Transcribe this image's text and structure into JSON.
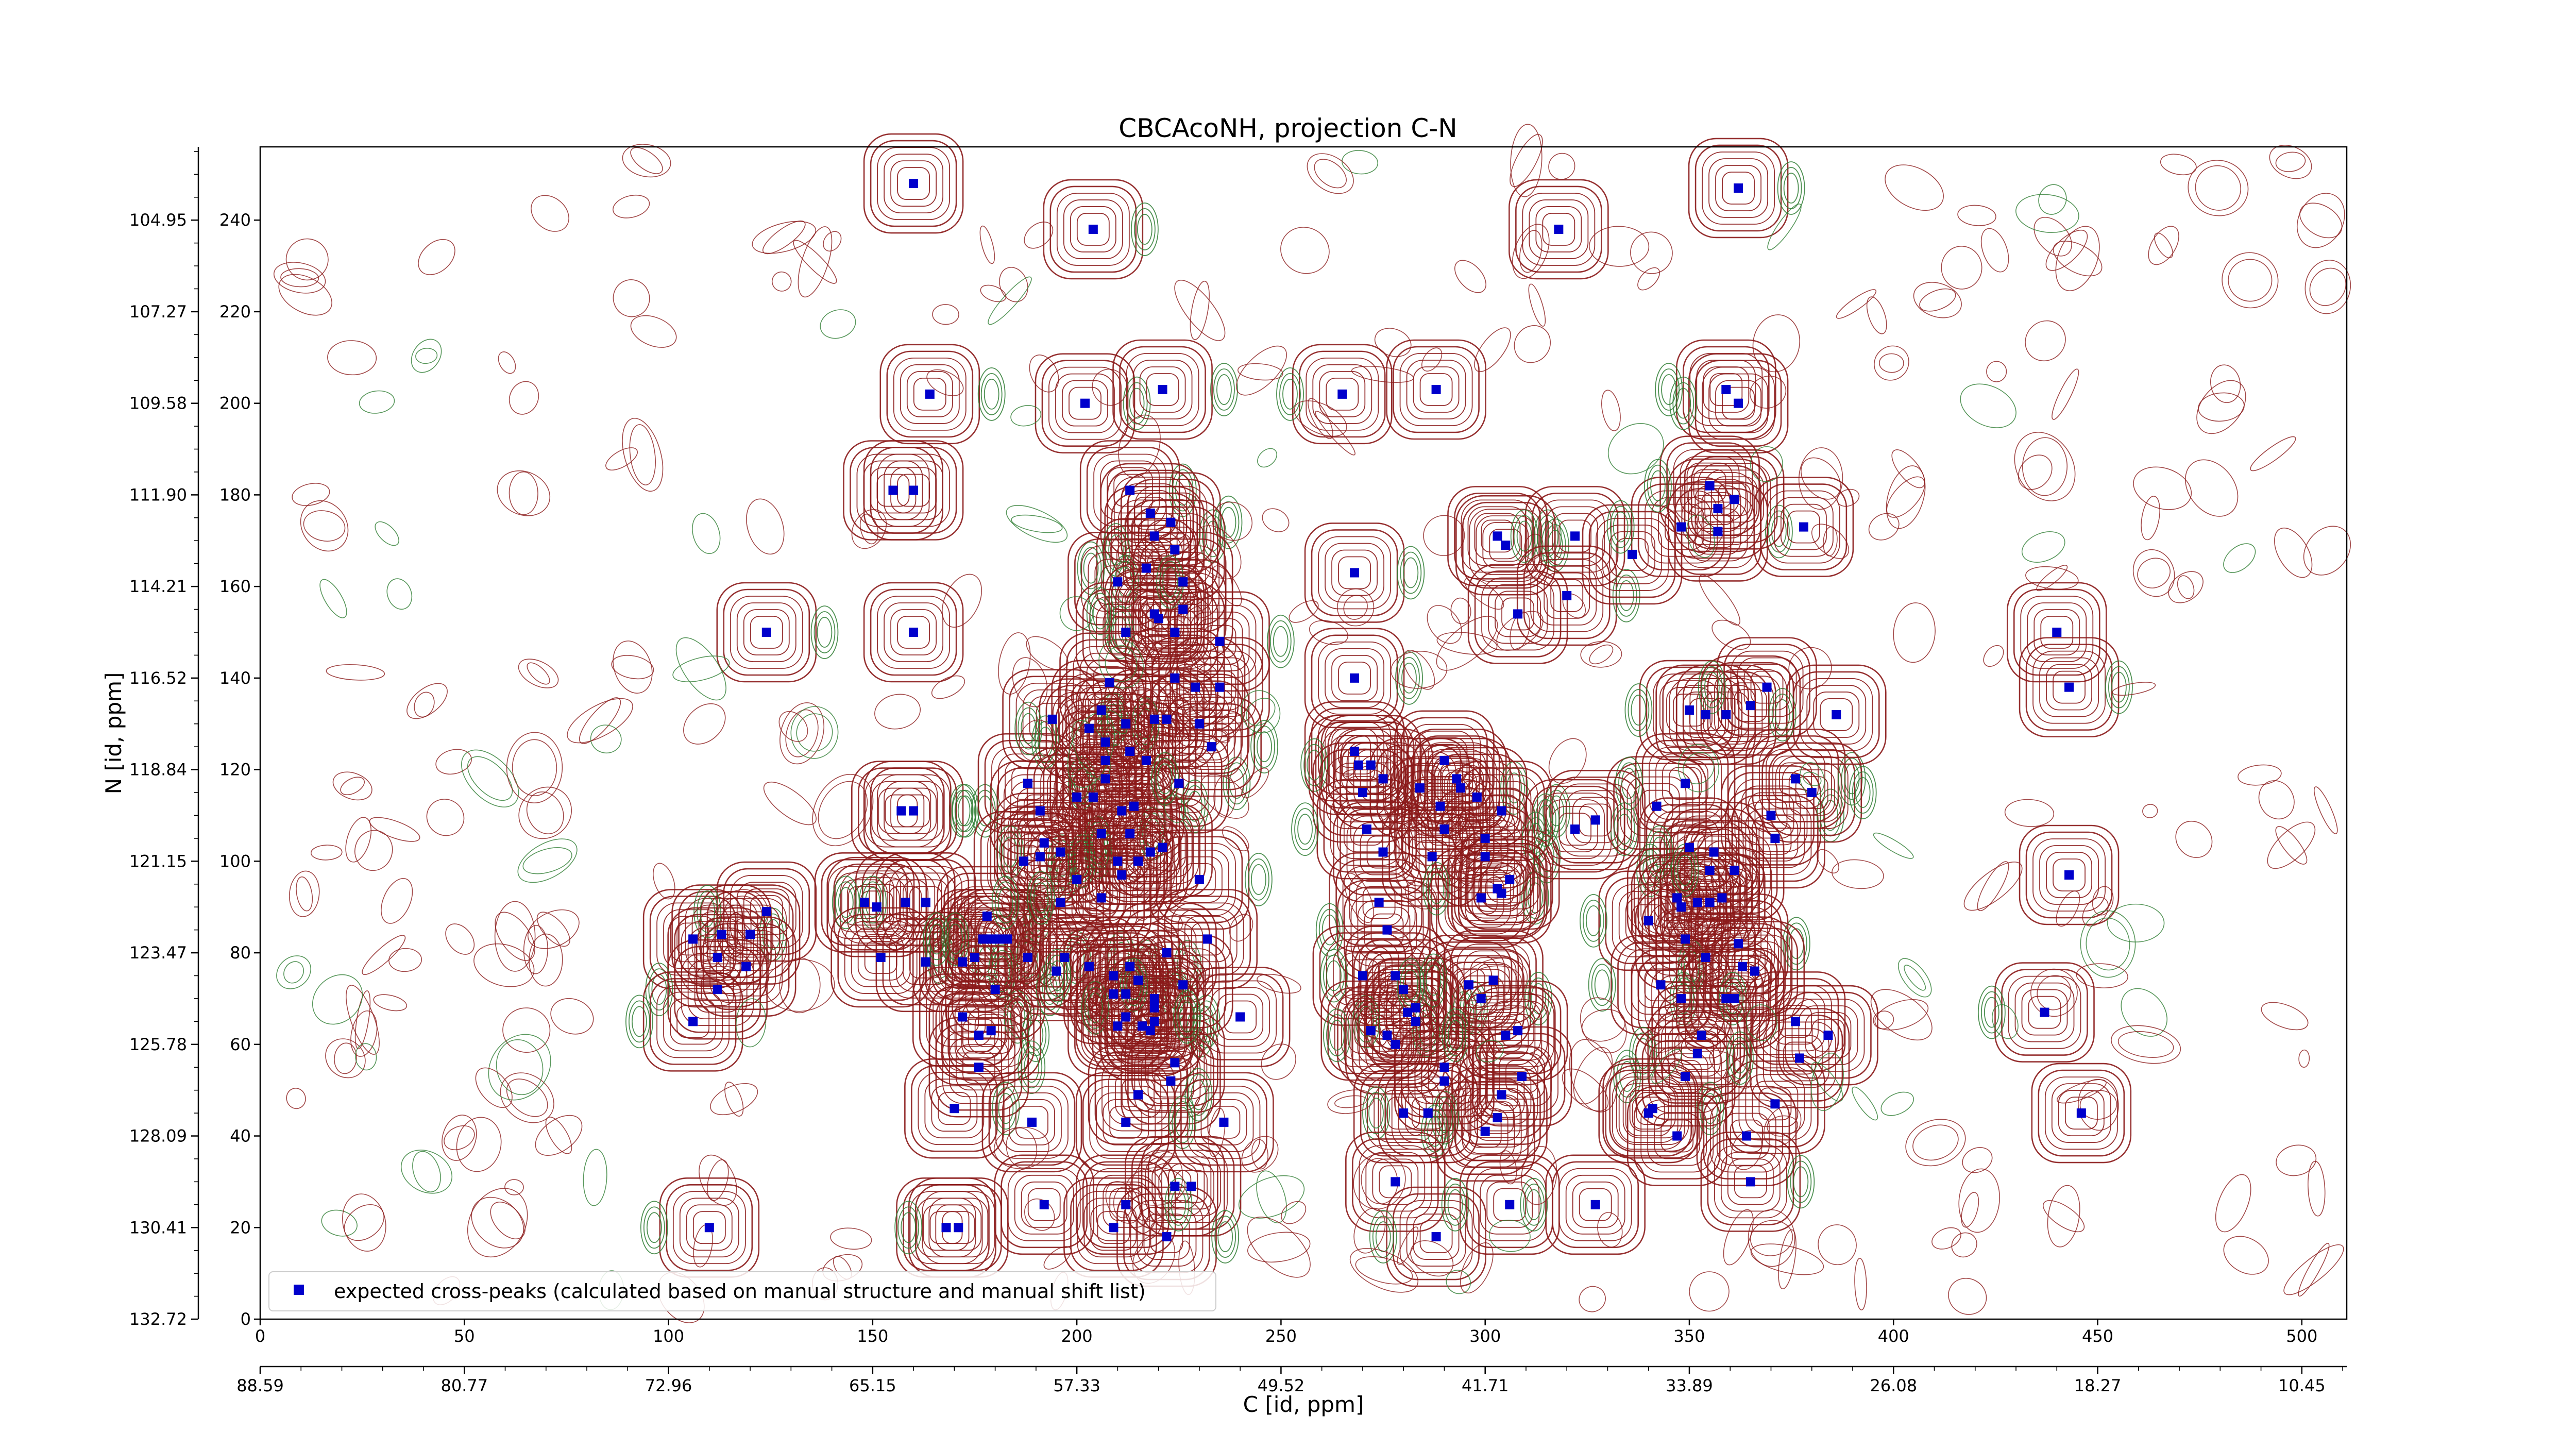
{
  "chart_data": {
    "type": "scatter",
    "title": "CBCAcoNH, projection C-N",
    "xlabel": "C [id, ppm]",
    "ylabel": "N [id, ppm]",
    "xlim": [
      0,
      511
    ],
    "ylim": [
      0,
      256
    ],
    "x_ticks": [
      0,
      50,
      100,
      150,
      200,
      250,
      300,
      350,
      400,
      450,
      500
    ],
    "y_ticks": [
      0,
      20,
      40,
      60,
      80,
      100,
      120,
      140,
      160,
      180,
      200,
      220,
      240
    ],
    "y_ppm_tick_labels": [
      "132.72",
      "130.41",
      "128.09",
      "125.78",
      "123.47",
      "121.15",
      "118.84",
      "116.52",
      "114.21",
      "111.90",
      "109.58",
      "107.27",
      "104.95"
    ],
    "x_ppm_tick_labels": [
      "88.59",
      "80.77",
      "72.96",
      "65.15",
      "57.33",
      "49.52",
      "41.71",
      "33.89",
      "26.08",
      "18.27",
      "10.45"
    ],
    "legend": {
      "label": "expected cross-peaks (calculated based on manual structure and manual shift list)",
      "position": "lower-left"
    },
    "grid": false,
    "contour_colors": {
      "positive": "#8b1a1a",
      "negative": "#2e7d32"
    },
    "marker_color": "#0000cc",
    "series": [
      {
        "name": "expected cross-peaks (calculated based on manual structure and manual shift list)",
        "points": [
          [
            160,
            248
          ],
          [
            164,
            202
          ],
          [
            155,
            181
          ],
          [
            160,
            181
          ],
          [
            124,
            150
          ],
          [
            160,
            150
          ],
          [
            106,
            83
          ],
          [
            113,
            84
          ],
          [
            120,
            84
          ],
          [
            124,
            89
          ],
          [
            112,
            79
          ],
          [
            119,
            77
          ],
          [
            112,
            72
          ],
          [
            106,
            65
          ],
          [
            148,
            91
          ],
          [
            151,
            90
          ],
          [
            158,
            91
          ],
          [
            163,
            91
          ],
          [
            157,
            111
          ],
          [
            160,
            111
          ],
          [
            152,
            79
          ],
          [
            163,
            78
          ],
          [
            172,
            78
          ],
          [
            178,
            88
          ],
          [
            177,
            83
          ],
          [
            175,
            79
          ],
          [
            179,
            83
          ],
          [
            181,
            83
          ],
          [
            183,
            83
          ],
          [
            188,
            79
          ],
          [
            195,
            76
          ],
          [
            172,
            66
          ],
          [
            176,
            62
          ],
          [
            179,
            63
          ],
          [
            180,
            72
          ],
          [
            176,
            55
          ],
          [
            170,
            46
          ],
          [
            197,
            79
          ],
          [
            203,
            77
          ],
          [
            213,
            77
          ],
          [
            209,
            71
          ],
          [
            209,
            75
          ],
          [
            212,
            71
          ],
          [
            212,
            66
          ],
          [
            210,
            64
          ],
          [
            219,
            70
          ],
          [
            218,
            63
          ],
          [
            219,
            68
          ],
          [
            219,
            65
          ],
          [
            222,
            80
          ],
          [
            226,
            73
          ],
          [
            194,
            131
          ],
          [
            207,
            122
          ],
          [
            212,
            130
          ],
          [
            213,
            124
          ],
          [
            217,
            122
          ],
          [
            222,
            131
          ],
          [
            225,
            117
          ],
          [
            219,
            131
          ],
          [
            214,
            112
          ],
          [
            211,
            111
          ],
          [
            206,
            106
          ],
          [
            213,
            106
          ],
          [
            211,
            97
          ],
          [
            218,
            102
          ],
          [
            210,
            100
          ],
          [
            215,
            100
          ],
          [
            221,
            103
          ],
          [
            230,
            96
          ],
          [
            191,
            111
          ],
          [
            192,
            104
          ],
          [
            188,
            117
          ],
          [
            196,
            102
          ],
          [
            187,
            100
          ],
          [
            191,
            101
          ],
          [
            196,
            91
          ],
          [
            200,
            96
          ],
          [
            206,
            92
          ],
          [
            202,
            200
          ],
          [
            221,
            203
          ],
          [
            213,
            181
          ],
          [
            218,
            176
          ],
          [
            219,
            171
          ],
          [
            223,
            174
          ],
          [
            224,
            168
          ],
          [
            217,
            164
          ],
          [
            226,
            161
          ],
          [
            226,
            155
          ],
          [
            220,
            153
          ],
          [
            224,
            150
          ],
          [
            212,
            150
          ],
          [
            235,
            148
          ],
          [
            235,
            138
          ],
          [
            210,
            161
          ],
          [
            219,
            154
          ],
          [
            224,
            140
          ],
          [
            229,
            138
          ],
          [
            230,
            130
          ],
          [
            233,
            125
          ],
          [
            215,
            74
          ],
          [
            216,
            64
          ],
          [
            224,
            56
          ],
          [
            223,
            52
          ],
          [
            215,
            49
          ],
          [
            212,
            43
          ],
          [
            224,
            29
          ],
          [
            228,
            29
          ],
          [
            222,
            18
          ],
          [
            212,
            25
          ],
          [
            209,
            20
          ],
          [
            192,
            25
          ],
          [
            189,
            43
          ],
          [
            204,
            238
          ],
          [
            203,
            129
          ],
          [
            208,
            139
          ],
          [
            207,
            126
          ],
          [
            206,
            133
          ],
          [
            204,
            114
          ],
          [
            200,
            114
          ],
          [
            207,
            118
          ],
          [
            168,
            20
          ],
          [
            171,
            20
          ],
          [
            110,
            20
          ],
          [
            240,
            66
          ],
          [
            232,
            83
          ],
          [
            236,
            43
          ],
          [
            265,
            202
          ],
          [
            288,
            203
          ],
          [
            268,
            163
          ],
          [
            268,
            140
          ],
          [
            268,
            124
          ],
          [
            269,
            121
          ],
          [
            272,
            121
          ],
          [
            275,
            118
          ],
          [
            270,
            115
          ],
          [
            271,
            107
          ],
          [
            275,
            102
          ],
          [
            274,
            91
          ],
          [
            276,
            85
          ],
          [
            270,
            75
          ],
          [
            278,
            75
          ],
          [
            280,
            72
          ],
          [
            281,
            67
          ],
          [
            283,
            68
          ],
          [
            283,
            65
          ],
          [
            272,
            63
          ],
          [
            276,
            62
          ],
          [
            278,
            60
          ],
          [
            290,
            55
          ],
          [
            290,
            52
          ],
          [
            280,
            45
          ],
          [
            284,
            116
          ],
          [
            289,
            112
          ],
          [
            290,
            107
          ],
          [
            287,
            101
          ],
          [
            293,
            118
          ],
          [
            290,
            122
          ],
          [
            294,
            116
          ],
          [
            298,
            114
          ],
          [
            304,
            111
          ],
          [
            300,
            105
          ],
          [
            299,
            92
          ],
          [
            303,
            94
          ],
          [
            300,
            101
          ],
          [
            306,
            96
          ],
          [
            304,
            93
          ],
          [
            296,
            73
          ],
          [
            302,
            74
          ],
          [
            299,
            70
          ],
          [
            305,
            62
          ],
          [
            308,
            63
          ],
          [
            309,
            53
          ],
          [
            304,
            49
          ],
          [
            303,
            44
          ],
          [
            300,
            41
          ],
          [
            303,
            171
          ],
          [
            305,
            169
          ],
          [
            308,
            154
          ],
          [
            318,
            238
          ],
          [
            322,
            171
          ],
          [
            320,
            158
          ],
          [
            336,
            167
          ],
          [
            286,
            45
          ],
          [
            278,
            30
          ],
          [
            288,
            18
          ],
          [
            306,
            25
          ],
          [
            348,
            173
          ],
          [
            357,
            172
          ],
          [
            357,
            177
          ],
          [
            355,
            182
          ],
          [
            361,
            179
          ],
          [
            378,
            173
          ],
          [
            362,
            247
          ],
          [
            359,
            203
          ],
          [
            362,
            200
          ],
          [
            342,
            112
          ],
          [
            349,
            117
          ],
          [
            359,
            132
          ],
          [
            354,
            132
          ],
          [
            365,
            134
          ],
          [
            350,
            133
          ],
          [
            340,
            87
          ],
          [
            348,
            90
          ],
          [
            355,
            98
          ],
          [
            350,
            103
          ],
          [
            356,
            102
          ],
          [
            352,
            91
          ],
          [
            355,
            91
          ],
          [
            358,
            92
          ],
          [
            349,
            83
          ],
          [
            354,
            79
          ],
          [
            362,
            82
          ],
          [
            363,
            77
          ],
          [
            366,
            76
          ],
          [
            361,
            70
          ],
          [
            359,
            70
          ],
          [
            343,
            73
          ],
          [
            348,
            70
          ],
          [
            353,
            62
          ],
          [
            352,
            58
          ],
          [
            349,
            53
          ],
          [
            341,
            46
          ],
          [
            347,
            40
          ],
          [
            364,
            40
          ],
          [
            371,
            47
          ],
          [
            365,
            30
          ],
          [
            347,
            92
          ],
          [
            361,
            98
          ],
          [
            371,
            105
          ],
          [
            370,
            110
          ],
          [
            376,
            118
          ],
          [
            380,
            115
          ],
          [
            386,
            132
          ],
          [
            369,
            138
          ],
          [
            376,
            65
          ],
          [
            384,
            62
          ],
          [
            377,
            57
          ],
          [
            322,
            107
          ],
          [
            327,
            109
          ],
          [
            327,
            25
          ],
          [
            340,
            45
          ],
          [
            440,
            150
          ],
          [
            443,
            138
          ],
          [
            443,
            97
          ],
          [
            437,
            67
          ],
          [
            446,
            45
          ]
        ]
      }
    ]
  }
}
